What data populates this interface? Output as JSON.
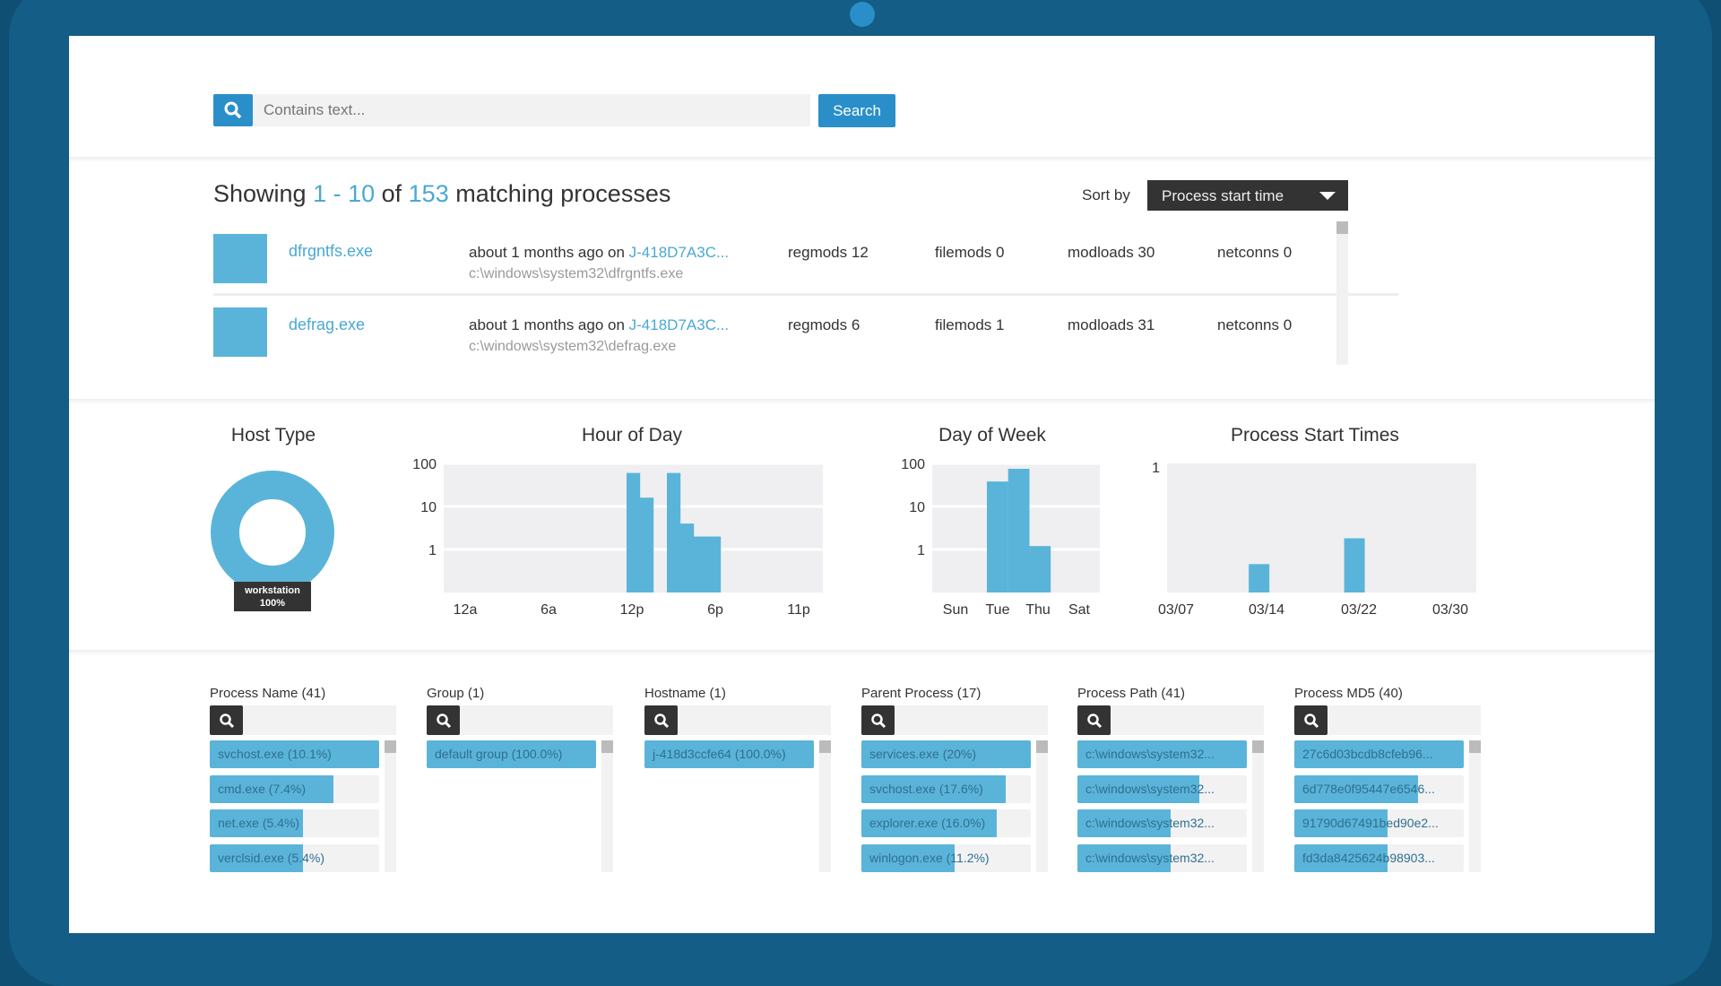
{
  "search": {
    "placeholder": "Contains text...",
    "button": "Search"
  },
  "results": {
    "prefix": "Showing ",
    "range": "1 - 10",
    "of": " of ",
    "total": "153",
    "suffix": " matching processes",
    "sort_label": "Sort by",
    "sort_value": "Process start time"
  },
  "processes": [
    {
      "name": "dfrgntfs.exe",
      "time": "about 1 months ago on ",
      "host": "J-418D7A3C...",
      "path": "c:\\windows\\system32\\dfrgntfs.exe",
      "regmods": "regmods 12",
      "filemods": "filemods 0",
      "modloads": "modloads 30",
      "netconns": "netconns 0"
    },
    {
      "name": "defrag.exe",
      "time": "about 1 months ago on ",
      "host": "J-418D7A3C...",
      "path": "c:\\windows\\system32\\defrag.exe",
      "regmods": "regmods 6",
      "filemods": "filemods 1",
      "modloads": "modloads 31",
      "netconns": "netconns 0"
    }
  ],
  "colors": {
    "accent": "#2a8fc9",
    "bar": "#5ab4d9",
    "dark": "#333333"
  },
  "chart_data": [
    {
      "type": "pie",
      "title": "Host Type",
      "slices": [
        {
          "label": "workstation",
          "value": 100,
          "display": "100%"
        }
      ]
    },
    {
      "type": "bar",
      "title": "Hour of Day",
      "yscale": "log",
      "ylim": [
        0.1,
        100
      ],
      "yticks": [
        "100",
        "10",
        "1"
      ],
      "xticks": [
        "12a",
        "6a",
        "12p",
        "6p",
        "11p"
      ],
      "x": [
        12,
        13,
        15,
        16,
        17,
        18
      ],
      "values": [
        60,
        16,
        60,
        4,
        2,
        2
      ],
      "grid": true
    },
    {
      "type": "bar",
      "title": "Day of Week",
      "yscale": "log",
      "ylim": [
        0.1,
        100
      ],
      "yticks": [
        "100",
        "10",
        "1"
      ],
      "xticks": [
        "Sun",
        "Tue",
        "Thu",
        "Sat"
      ],
      "categories": [
        "Tue",
        "Wed",
        "Thu"
      ],
      "values": [
        38,
        75,
        1.2
      ],
      "grid": true
    },
    {
      "type": "bar",
      "title": "Process Start Times",
      "ylim": [
        0,
        1
      ],
      "yticks": [
        "1"
      ],
      "xticks": [
        "03/07",
        "03/14",
        "03/22",
        "03/30"
      ],
      "x": [
        "03/14",
        "03/22"
      ],
      "values": [
        0.22,
        0.42
      ]
    }
  ],
  "filters": [
    {
      "title": "Process Name (41)",
      "items": [
        {
          "label": "svchost.exe (10.1%)",
          "fill": 1.0
        },
        {
          "label": "cmd.exe (7.4%)",
          "fill": 0.73
        },
        {
          "label": "net.exe (5.4%)",
          "fill": 0.55
        },
        {
          "label": "verclsid.exe (5.4%)",
          "fill": 0.55
        }
      ]
    },
    {
      "title": "Group (1)",
      "items": [
        {
          "label": "default group (100.0%)",
          "fill": 1.0
        }
      ]
    },
    {
      "title": "Hostname (1)",
      "items": [
        {
          "label": "j-418d3ccfe64 (100.0%)",
          "fill": 1.0
        }
      ]
    },
    {
      "title": "Parent Process (17)",
      "items": [
        {
          "label": "services.exe (20%)",
          "fill": 1.0
        },
        {
          "label": "svchost.exe (17.6%)",
          "fill": 0.85
        },
        {
          "label": "explorer.exe (16.0%)",
          "fill": 0.8
        },
        {
          "label": "winlogon.exe (11.2%)",
          "fill": 0.55
        }
      ]
    },
    {
      "title": "Process Path (41)",
      "items": [
        {
          "label": "c:\\windows\\system32...",
          "fill": 1.0
        },
        {
          "label": "c:\\windows\\system32...",
          "fill": 0.72
        },
        {
          "label": "c:\\windows\\system32...",
          "fill": 0.55
        },
        {
          "label": "c:\\windows\\system32...",
          "fill": 0.55
        }
      ]
    },
    {
      "title": "Process MD5 (40)",
      "items": [
        {
          "label": "27c6d03bcdb8cfeb96...",
          "fill": 1.0
        },
        {
          "label": "6d778e0f95447e6546...",
          "fill": 0.73
        },
        {
          "label": "91790d67491bed90e2...",
          "fill": 0.55
        },
        {
          "label": "fd3da8425624b98903...",
          "fill": 0.55
        }
      ]
    }
  ]
}
